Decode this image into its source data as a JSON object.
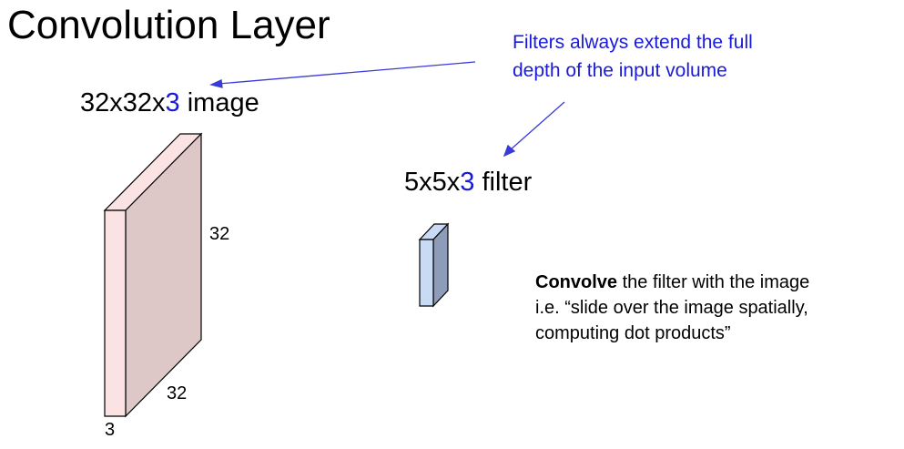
{
  "title": "Convolution Layer",
  "image_label": {
    "dims": "32x32x",
    "depth": "3",
    "suffix": " image"
  },
  "filter_label": {
    "dims": "5x5x",
    "depth": "3",
    "suffix": " filter"
  },
  "annotation": {
    "line1": "Filters always extend the full",
    "line2": "depth of the input volume"
  },
  "image_dims": {
    "height": "32",
    "width": "32",
    "depth": "3"
  },
  "convolve": {
    "bold": "Convolve",
    "line1_rest": " the filter with the image",
    "line2": "i.e. “slide over the image spatially,",
    "line3": "computing dot products”"
  },
  "colors": {
    "accent": "#1a1adc",
    "image_front": "#fbe3e3",
    "image_side": "#dec7c7",
    "image_top": "#fbe3e3",
    "filter_front": "#c9daf5",
    "filter_side": "#8d9cb8",
    "filter_top": "#c9daf5"
  }
}
